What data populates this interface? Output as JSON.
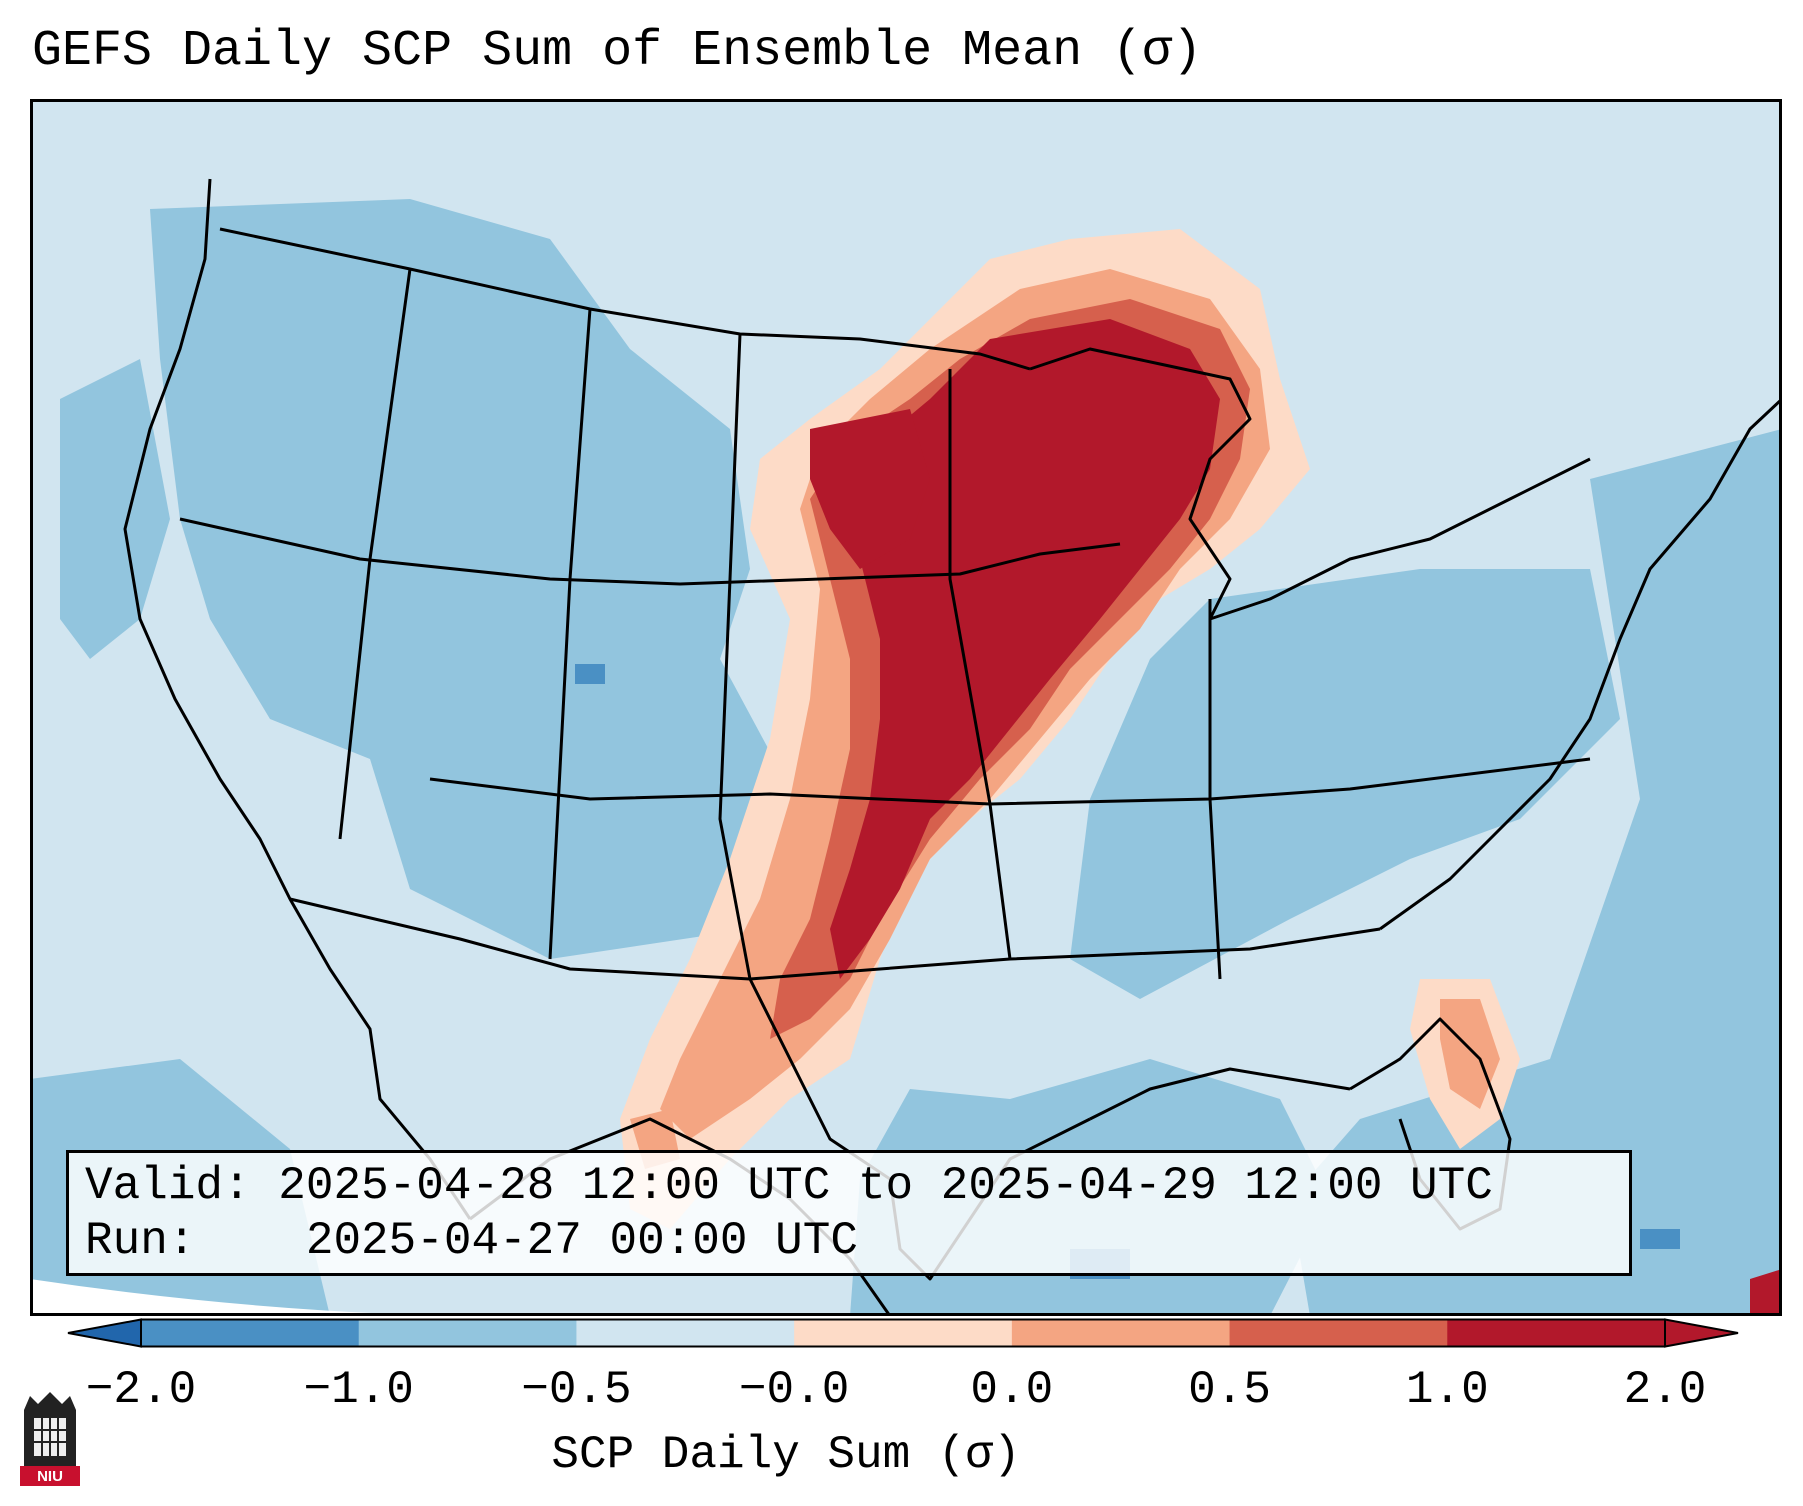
{
  "title": "GEFS Daily SCP Sum of Ensemble Mean (σ)",
  "info": {
    "valid_label": "Valid:",
    "valid_value": "2025-04-28 12:00 UTC to 2025-04-29 12:00 UTC",
    "run_label": "Run:",
    "run_value": "2025-04-27 00:00 UTC"
  },
  "colorbar": {
    "label": "SCP Daily Sum (σ)",
    "ticks": [
      "−2.0",
      "−1.0",
      "−0.5",
      "−0.0",
      "0.0",
      "0.5",
      "1.0",
      "2.0"
    ],
    "colors": [
      "#4a90c4",
      "#92c5de",
      "#d1e5f0",
      "#fddbc7",
      "#f4a582",
      "#d6604d",
      "#b2182b"
    ],
    "extend_low_color": "#2166ac",
    "extend_high_color": "#b2182b"
  },
  "map": {
    "region": "Contiguous United States",
    "ocean_color": "#92c5de",
    "land_base_color": "#d1e5f0",
    "anomaly_colors": {
      "weak_neg": "#d1e5f0",
      "mod_neg": "#92c5de",
      "strong_neg": "#4a90c4",
      "weak_pos": "#fddbc7",
      "mod_pos": "#f4a582",
      "strong_pos": "#d6604d",
      "extreme_pos": "#b2182b"
    }
  },
  "logo": {
    "text": "NIU"
  }
}
